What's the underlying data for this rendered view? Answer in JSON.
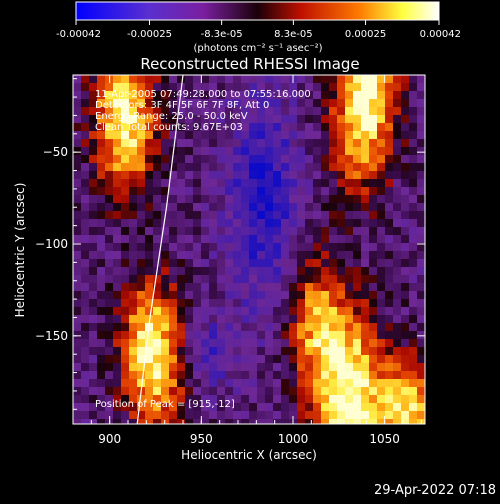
{
  "colorbar": {
    "ticks": [
      "-0.00042",
      "-0.00025",
      "-8.3e-05",
      "8.3e-05",
      "0.00025",
      "0.00042"
    ],
    "tick_values": [
      -0.00042,
      -0.00025,
      -8.3e-05,
      8.3e-05,
      0.00025,
      0.00042
    ],
    "unit_label": "(photons cm⁻² s⁻¹ asec⁻²)",
    "colors": [
      "#0000ff",
      "#7a1fa0",
      "#1a0008",
      "#c01000",
      "#ff7a00",
      "#ffff40",
      "#ffffff"
    ]
  },
  "plot": {
    "title": "Reconstructed RHESSI Image",
    "info_lines": [
      "11-Apr-2005 07:49:28.000 to 07:55:16.000",
      "Detectors: 3F 4F 5F 6F 7F 8F, Att 0",
      "Energy Range: 25.0 - 50.0 keV",
      "Clean    Total counts: 9.67E+03"
    ],
    "peak_label": "Position of Peak = [915,-12]",
    "xlabel": "Heliocentric X (arcsec)",
    "ylabel": "Heliocentric Y (arcsec)",
    "x_range": [
      880,
      1072
    ],
    "y_range": [
      -198,
      -8
    ],
    "x_ticks": [
      {
        "value": 900,
        "label": "900"
      },
      {
        "value": 950,
        "label": "950"
      },
      {
        "value": 1000,
        "label": "1000"
      },
      {
        "value": 1050,
        "label": "1050"
      }
    ],
    "y_ticks": [
      {
        "value": -50,
        "label": "−50"
      },
      {
        "value": -100,
        "label": "−100"
      },
      {
        "value": -150,
        "label": "−150"
      }
    ],
    "limb_points": [
      [
        940,
        -8
      ],
      [
        931,
        -80
      ],
      [
        922,
        -140
      ],
      [
        915,
        -198
      ]
    ]
  },
  "footer": {
    "timestamp": "29-Apr-2022 07:18"
  }
}
